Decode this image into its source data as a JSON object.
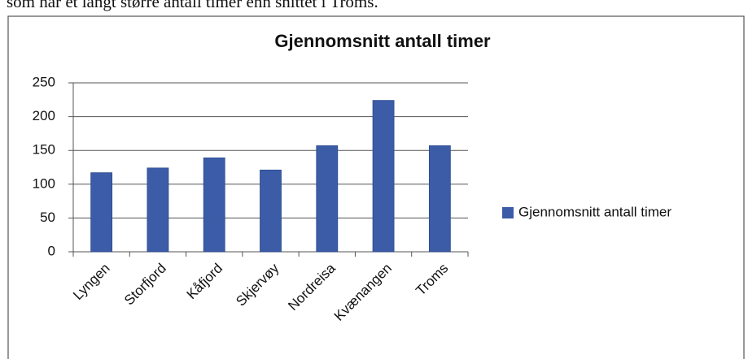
{
  "caption": "som har et langt større antall timer enn snittet i Troms.",
  "chart_data": {
    "type": "bar",
    "title": "Gjennomsnitt antall timer",
    "categories": [
      "Lyngen",
      "Storfjord",
      "Kåfjord",
      "Skjervøy",
      "Nordreisa",
      "Kvænangen",
      "Troms"
    ],
    "series": [
      {
        "name": "Gjennomsnitt antall timer",
        "color": "#3c5ca8",
        "values": [
          117,
          124,
          139,
          121,
          157,
          224,
          157
        ]
      }
    ],
    "ylim": [
      0,
      250
    ],
    "yticks": [
      0,
      50,
      100,
      150,
      200,
      250
    ],
    "grid": true,
    "legend": "right"
  }
}
